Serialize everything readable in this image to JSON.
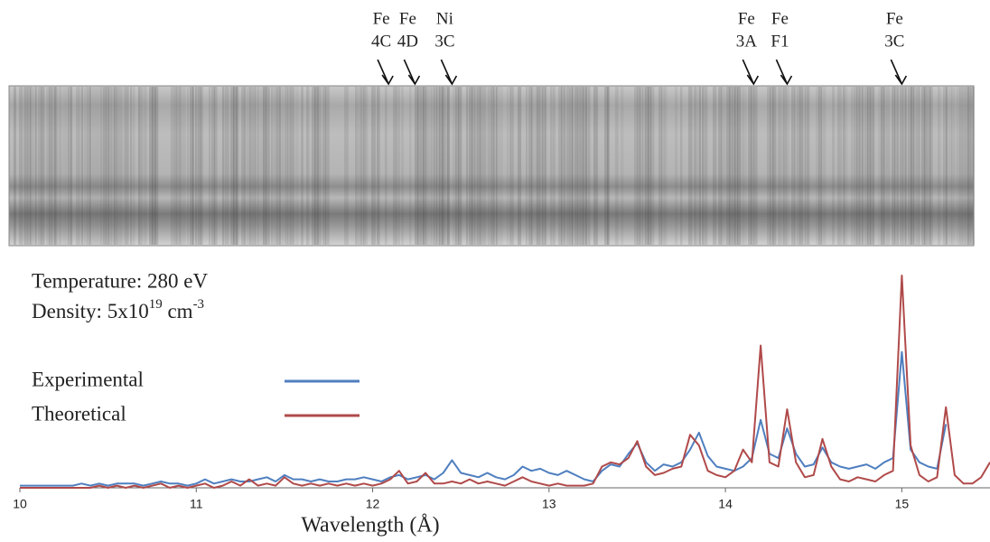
{
  "chart_data": {
    "type": "line",
    "xlabel": "Wavelength (Å)",
    "temperature": "Temperature: 280 eV",
    "density": {
      "label": "Density: 5x10",
      "exponent": "19",
      "unit": " cm",
      "unit_exponent": "-3"
    },
    "xlim": [
      10,
      15.5
    ],
    "xticks": [
      10,
      11,
      12,
      13,
      14,
      15
    ],
    "ylim": [
      0,
      100
    ],
    "grid": false,
    "annotations": [
      {
        "lines": [
          "Fe",
          "4C"
        ],
        "x": 12.09
      },
      {
        "lines": [
          "Fe",
          "4D"
        ],
        "x": 12.24
      },
      {
        "lines": [
          "Ni",
          "3C"
        ],
        "x": 12.45
      },
      {
        "lines": [
          "Fe",
          "3A"
        ],
        "x": 14.16
      },
      {
        "lines": [
          "Fe",
          "F1"
        ],
        "x": 14.35
      },
      {
        "lines": [
          "Fe",
          "3C"
        ],
        "x": 15.0
      }
    ],
    "x": [
      10,
      10.05,
      10.1,
      10.15,
      10.2,
      10.25,
      10.3,
      10.35,
      10.4,
      10.45,
      10.5,
      10.55,
      10.6,
      10.65,
      10.7,
      10.75,
      10.8,
      10.85,
      10.9,
      10.95,
      11,
      11.05,
      11.1,
      11.15,
      11.2,
      11.25,
      11.3,
      11.35,
      11.4,
      11.45,
      11.5,
      11.55,
      11.6,
      11.65,
      11.7,
      11.75,
      11.8,
      11.85,
      11.9,
      11.95,
      12,
      12.05,
      12.1,
      12.15,
      12.2,
      12.25,
      12.3,
      12.35,
      12.4,
      12.45,
      12.5,
      12.55,
      12.6,
      12.65,
      12.7,
      12.75,
      12.8,
      12.85,
      12.9,
      12.95,
      13,
      13.05,
      13.1,
      13.15,
      13.2,
      13.25,
      13.3,
      13.35,
      13.4,
      13.45,
      13.5,
      13.55,
      13.6,
      13.65,
      13.7,
      13.75,
      13.8,
      13.85,
      13.9,
      13.95,
      14,
      14.05,
      14.1,
      14.15,
      14.2,
      14.25,
      14.3,
      14.35,
      14.4,
      14.45,
      14.5,
      14.55,
      14.6,
      14.65,
      14.7,
      14.75,
      14.8,
      14.85,
      14.9,
      14.95,
      15,
      15.05,
      15.1,
      15.15,
      15.2,
      15.25,
      15.3,
      15.35,
      15.4,
      15.45,
      15.5
    ],
    "series": [
      {
        "name": "Experimental",
        "color": "#4f7fbf",
        "values": [
          1,
          1,
          1,
          1,
          1,
          1,
          1,
          2,
          1,
          2,
          1,
          2,
          2,
          2,
          1,
          2,
          3,
          2,
          2,
          1,
          2,
          4,
          2,
          3,
          4,
          3,
          3,
          4,
          5,
          3,
          6,
          4,
          4,
          3,
          4,
          3,
          3,
          4,
          4,
          5,
          4,
          3,
          5,
          6,
          4,
          5,
          6,
          4,
          7,
          13,
          7,
          6,
          5,
          7,
          5,
          4,
          6,
          10,
          8,
          9,
          7,
          6,
          8,
          6,
          4,
          3,
          8,
          11,
          10,
          16,
          21,
          12,
          8,
          11,
          10,
          12,
          18,
          26,
          15,
          10,
          9,
          8,
          10,
          14,
          32,
          16,
          14,
          28,
          16,
          10,
          11,
          19,
          12,
          10,
          9,
          10,
          11,
          9,
          12,
          14,
          64,
          18,
          12,
          10,
          9,
          30,
          null,
          null,
          null,
          null,
          null
        ]
      },
      {
        "name": "Theoretical",
        "color": "#b04a4a",
        "values": [
          0,
          0,
          0,
          0,
          0,
          0,
          0,
          0,
          0,
          1,
          0,
          1,
          0,
          1,
          0,
          1,
          2,
          0,
          1,
          0,
          1,
          2,
          0,
          1,
          3,
          1,
          4,
          1,
          2,
          1,
          5,
          2,
          1,
          2,
          1,
          2,
          1,
          2,
          1,
          2,
          1,
          2,
          4,
          8,
          2,
          3,
          7,
          2,
          2,
          3,
          2,
          4,
          2,
          3,
          2,
          1,
          3,
          5,
          3,
          2,
          1,
          2,
          1,
          1,
          1,
          2,
          10,
          12,
          11,
          14,
          22,
          10,
          6,
          7,
          9,
          10,
          25,
          20,
          8,
          6,
          5,
          8,
          18,
          12,
          67,
          12,
          10,
          37,
          12,
          5,
          6,
          23,
          10,
          4,
          3,
          5,
          4,
          3,
          6,
          8,
          100,
          20,
          6,
          3,
          5,
          38,
          6,
          2,
          2,
          5,
          12
        ]
      }
    ]
  }
}
